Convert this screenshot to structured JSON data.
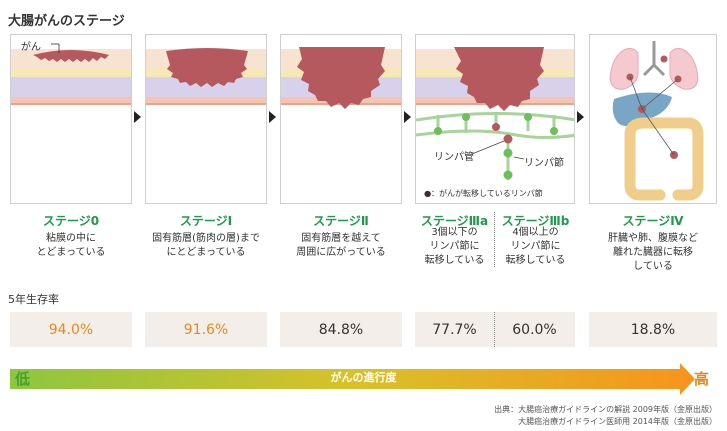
{
  "title": "大腸がんのステージ",
  "labels": {
    "gan": "がん",
    "lymph_vessel": "リンパ管",
    "lymph_node": "リンパ節",
    "lymph_legend": "●：がんが転移しているリンパ節"
  },
  "stages": [
    {
      "name": "ステージ0",
      "desc": [
        "粘膜の中に",
        "とどまっている"
      ]
    },
    {
      "name": "ステージⅠ",
      "desc": [
        "固有筋層(筋肉の層)まで",
        "にとどまっている"
      ]
    },
    {
      "name": "ステージⅡ",
      "desc": [
        "固有筋層を越えて",
        "周囲に広がっている"
      ]
    },
    {
      "name": "ステージⅢa",
      "desc": [
        "3個以下の",
        "リンパ節に",
        "転移している"
      ]
    },
    {
      "name": "ステージⅢb",
      "desc": [
        "4個以上の",
        "リンパ節に",
        "転移している"
      ]
    },
    {
      "name": "ステージⅣ",
      "desc": [
        "肝臓や肺、腹膜など",
        "離れた臓器に転移",
        "している"
      ]
    }
  ],
  "survival_title": "5年生存率",
  "survival_rates": [
    "94.0%",
    "91.6%",
    "84.8%",
    "77.7%",
    "60.0%",
    "18.8%"
  ],
  "progress": {
    "low": "低",
    "label": "がんの進行度",
    "high": "高"
  },
  "source": [
    "出典：大腸癌治療ガイドラインの解説 2009年版（金原出版）",
    "大腸癌治療ガイドライン医師用 2014年版（金原出版）"
  ],
  "colors": {
    "stage_green": "#1f9a4a",
    "rate_orange": "#e8891c",
    "tumor": "#b5595e",
    "gradient_start": "#8dc63f",
    "gradient_end": "#f7941d"
  }
}
